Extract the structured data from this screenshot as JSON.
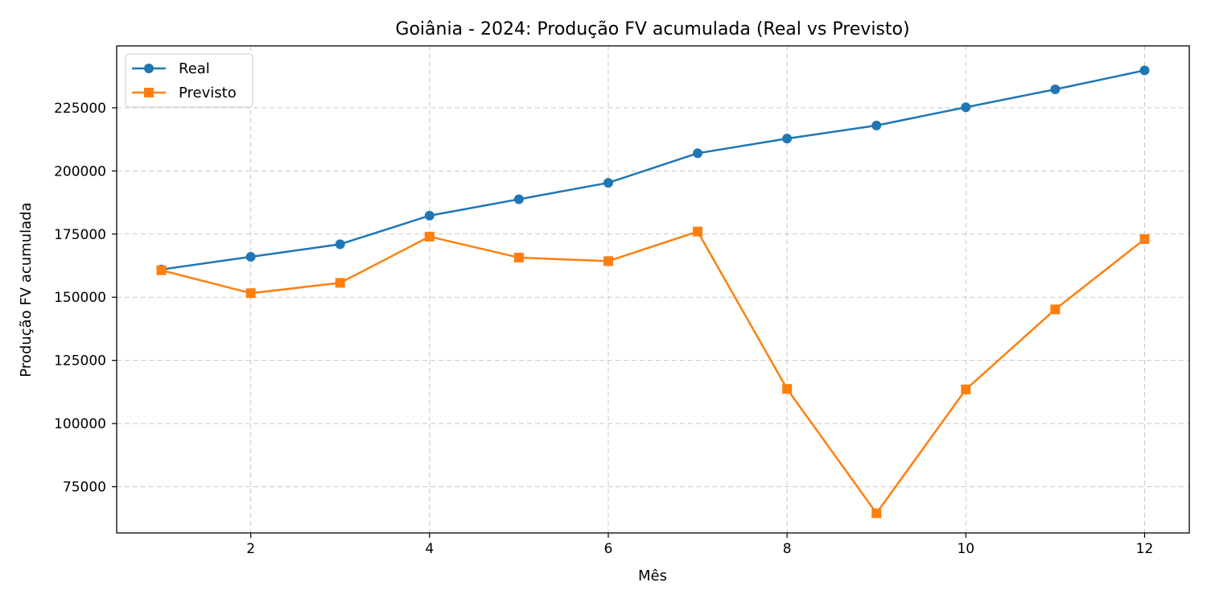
{
  "chart_data": {
    "type": "line",
    "title": "Goiânia - 2024: Produção FV acumulada (Real vs Previsto)",
    "xlabel": "Mês",
    "ylabel": "Produção FV acumulada",
    "x": [
      1,
      2,
      3,
      4,
      5,
      6,
      7,
      8,
      9,
      10,
      11,
      12
    ],
    "series": [
      {
        "name": "Real",
        "color": "#1f77b4",
        "marker": "circle",
        "values": [
          161000,
          166000,
          171000,
          182300,
          188800,
          195300,
          207000,
          212800,
          218000,
          225200,
          232300,
          239800
        ]
      },
      {
        "name": "Previsto",
        "color": "#ff7f0e",
        "marker": "square",
        "values": [
          160700,
          151600,
          155700,
          174000,
          165700,
          164300,
          176000,
          113700,
          64500,
          113500,
          145200,
          173000
        ]
      }
    ],
    "xlim": [
      0.5,
      12.5
    ],
    "ylim": [
      56700,
      249500
    ],
    "xticks": [
      2,
      4,
      6,
      8,
      10,
      12
    ],
    "yticks": [
      75000,
      100000,
      125000,
      150000,
      175000,
      200000,
      225000
    ],
    "grid": true,
    "grid_style": "dashed",
    "legend_position": "top-left"
  }
}
